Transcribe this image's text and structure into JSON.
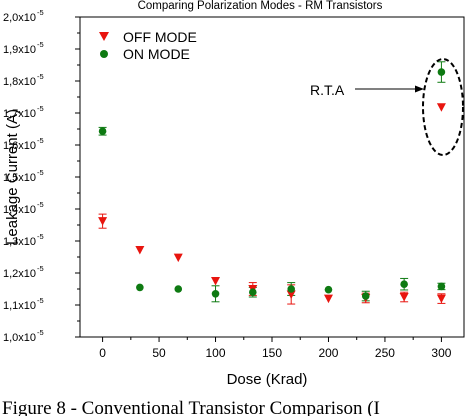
{
  "chart_data": {
    "type": "scatter",
    "title": "Comparing Polarization Modes - RM Transistors",
    "xlabel": "Dose (Krad)",
    "ylabel": "Leakage Current (A)",
    "xlim": [
      -20,
      320
    ],
    "ylim": [
      1e-05,
      2e-05
    ],
    "x_ticks": [
      "0",
      "50",
      "100",
      "150",
      "200",
      "250",
      "300"
    ],
    "y_ticks": [
      {
        "mant": "1,0",
        "exp": "-5"
      },
      {
        "mant": "1,1",
        "exp": "-5"
      },
      {
        "mant": "1,2",
        "exp": "-5"
      },
      {
        "mant": "1,3",
        "exp": "-5"
      },
      {
        "mant": "1,4",
        "exp": "-5"
      },
      {
        "mant": "1,5",
        "exp": "-5"
      },
      {
        "mant": "1,6",
        "exp": "-5"
      },
      {
        "mant": "1,7",
        "exp": "-5"
      },
      {
        "mant": "1,8",
        "exp": "-5"
      },
      {
        "mant": "1,9",
        "exp": "-5"
      },
      {
        "mant": "2,0",
        "exp": "-5"
      }
    ],
    "legend_position": "top-left",
    "series": [
      {
        "name": "OFF MODE",
        "marker": "triangle-down",
        "color": "#e8150f",
        "points": [
          {
            "x": 0,
            "y": 1.362e-05,
            "err": 2.2e-07
          },
          {
            "x": 33,
            "y": 1.272e-05,
            "err": 0
          },
          {
            "x": 67,
            "y": 1.248e-05,
            "err": 0
          },
          {
            "x": 100,
            "y": 1.175e-05,
            "err": 0
          },
          {
            "x": 133,
            "y": 1.15e-05,
            "err": 2e-07
          },
          {
            "x": 167,
            "y": 1.133e-05,
            "err": 3e-07
          },
          {
            "x": 200,
            "y": 1.12e-05,
            "err": 0
          },
          {
            "x": 233,
            "y": 1.122e-05,
            "err": 1.5e-07
          },
          {
            "x": 267,
            "y": 1.125e-05,
            "err": 1.5e-07
          },
          {
            "x": 300,
            "y": 1.12e-05,
            "err": 1.5e-07
          },
          {
            "x": 300,
            "y": 1.718e-05,
            "err": 0
          }
        ]
      },
      {
        "name": "ON MODE",
        "marker": "circle",
        "color": "#0e7a12",
        "points": [
          {
            "x": 0,
            "y": 1.643e-05,
            "err": 1.2e-07
          },
          {
            "x": 33,
            "y": 1.155e-05,
            "err": 0
          },
          {
            "x": 67,
            "y": 1.15e-05,
            "err": 0
          },
          {
            "x": 100,
            "y": 1.135e-05,
            "err": 2.5e-07
          },
          {
            "x": 133,
            "y": 1.14e-05,
            "err": 1.5e-07
          },
          {
            "x": 167,
            "y": 1.15e-05,
            "err": 2e-07
          },
          {
            "x": 200,
            "y": 1.148e-05,
            "err": 0
          },
          {
            "x": 233,
            "y": 1.128e-05,
            "err": 1.5e-07
          },
          {
            "x": 267,
            "y": 1.165e-05,
            "err": 1.8e-07
          },
          {
            "x": 300,
            "y": 1.158e-05,
            "err": 1e-07
          },
          {
            "x": 300,
            "y": 1.828e-05,
            "err": 3.2e-07
          }
        ]
      }
    ],
    "annotation": {
      "text": "R.T.A",
      "target_x": 300,
      "target_y": 1.77e-05
    }
  },
  "caption": {
    "text": "Figure 8 - Conventional Transistor Comparison (I"
  }
}
